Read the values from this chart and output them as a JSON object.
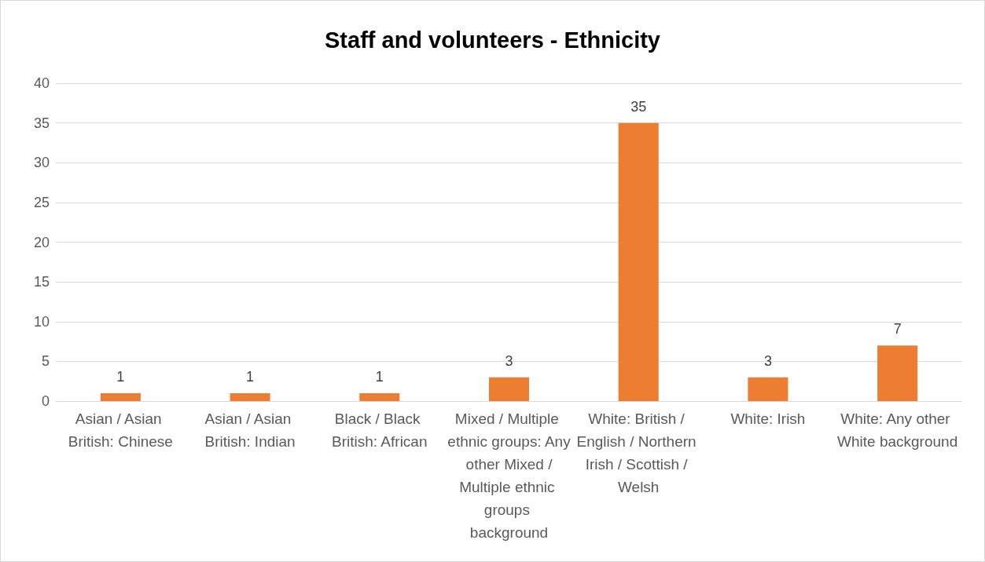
{
  "chart_data": {
    "type": "bar",
    "title": "Staff and volunteers - Ethnicity",
    "categories": [
      "Asian / Asian British: Chinese",
      "Asian / Asian British: Indian",
      "Black / Black British: African",
      "Mixed / Multiple ethnic groups: Any other Mixed / Multiple ethnic groups background",
      "White: British / English / Northern Irish / Scottish / Welsh",
      "White: Irish",
      "White: Any other White background"
    ],
    "values": [
      1,
      1,
      1,
      3,
      35,
      3,
      7
    ],
    "color": "#ed7d31",
    "ylim": [
      0,
      40
    ],
    "yticks": [
      0,
      5,
      10,
      15,
      20,
      25,
      30,
      35,
      40
    ],
    "grid": "y",
    "data_labels": true
  }
}
